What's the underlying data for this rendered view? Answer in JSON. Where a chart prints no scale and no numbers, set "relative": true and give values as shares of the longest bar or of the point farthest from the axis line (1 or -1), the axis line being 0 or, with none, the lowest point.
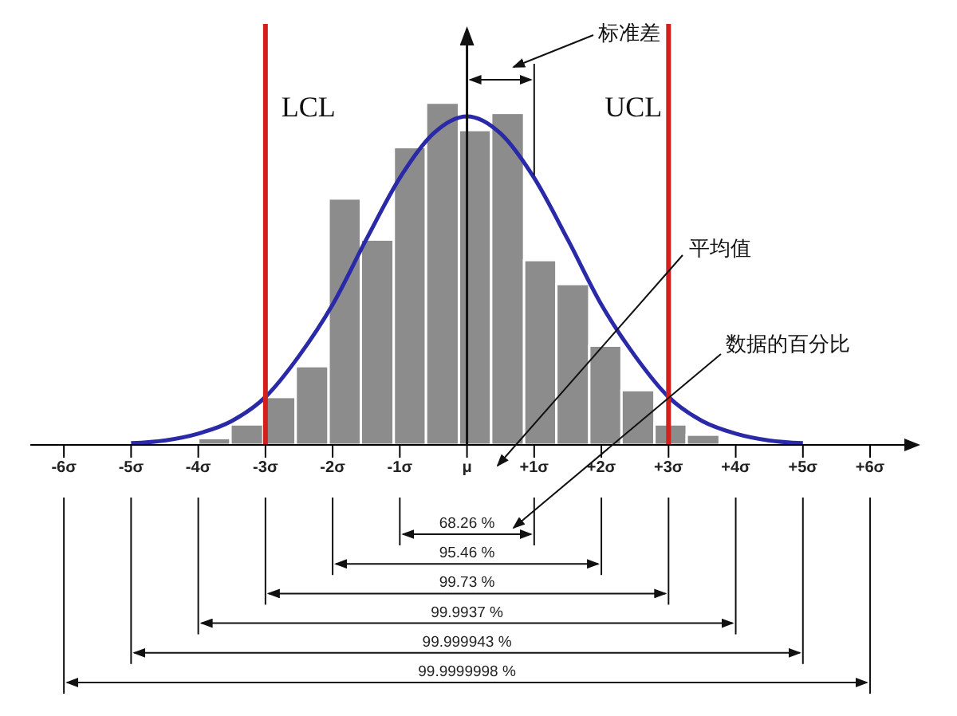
{
  "chart_data": {
    "type": "histogram",
    "relative": true,
    "bins": [
      -4,
      -3.52,
      -3.03,
      -2.55,
      -2.06,
      -1.58,
      -1.09,
      -0.61,
      -0.12,
      0.36,
      0.85,
      1.33,
      1.82,
      2.3,
      2.79,
      3.27,
      3.76
    ],
    "series": [
      {
        "color": "#8c8c8c",
        "values": [
          0.02,
          0.06,
          0.14,
          0.23,
          0.72,
          0.6,
          0.87,
          1.0,
          0.92,
          0.97,
          0.54,
          0.47,
          0.29,
          0.16,
          0.06,
          0.03
        ]
      },
      {
        "type": "line",
        "color": "#2a2aa8",
        "marker": "none",
        "x": [
          -5,
          -4.5,
          -4,
          -3.5,
          -3,
          -2.5,
          -2,
          -1.5,
          -1,
          -0.5,
          0,
          0.5,
          1,
          1.5,
          2,
          2.5,
          3,
          3.5,
          4,
          4.5,
          5
        ],
        "values": [
          0.005,
          0.013,
          0.033,
          0.07,
          0.14,
          0.26,
          0.41,
          0.6,
          0.78,
          0.91,
          0.96,
          0.91,
          0.78,
          0.6,
          0.41,
          0.26,
          0.14,
          0.07,
          0.033,
          0.013,
          0.005
        ]
      }
    ],
    "xlim": [
      -6.5,
      6.7
    ],
    "xticks": [
      {
        "value": -6,
        "label": "-6σ"
      },
      {
        "value": -5,
        "label": "-5σ"
      },
      {
        "value": -4,
        "label": "-4σ"
      },
      {
        "value": -3,
        "label": "-3σ"
      },
      {
        "value": -2,
        "label": "-2σ"
      },
      {
        "value": -1,
        "label": "-1σ"
      },
      {
        "value": 0,
        "label": "μ"
      },
      {
        "value": 1,
        "label": "+1σ"
      },
      {
        "value": 2,
        "label": "+2σ"
      },
      {
        "value": 3,
        "label": "+3σ"
      },
      {
        "value": 4,
        "label": "+4σ"
      },
      {
        "value": 5,
        "label": "+5σ"
      },
      {
        "value": 6,
        "label": "+6σ"
      }
    ],
    "ref_lines": [
      {
        "axis": "x",
        "value": -3,
        "label": "LCL",
        "color": "#d02020"
      },
      {
        "axis": "x",
        "value": 3,
        "label": "UCL",
        "color": "#d02020"
      }
    ],
    "annotations": [
      "标准差",
      "平均值",
      "数据的百分比",
      "68.26 %",
      "95.46 %",
      "99.73 %",
      "99.9937 %",
      "99.999943 %",
      "99.9999998 %"
    ]
  }
}
